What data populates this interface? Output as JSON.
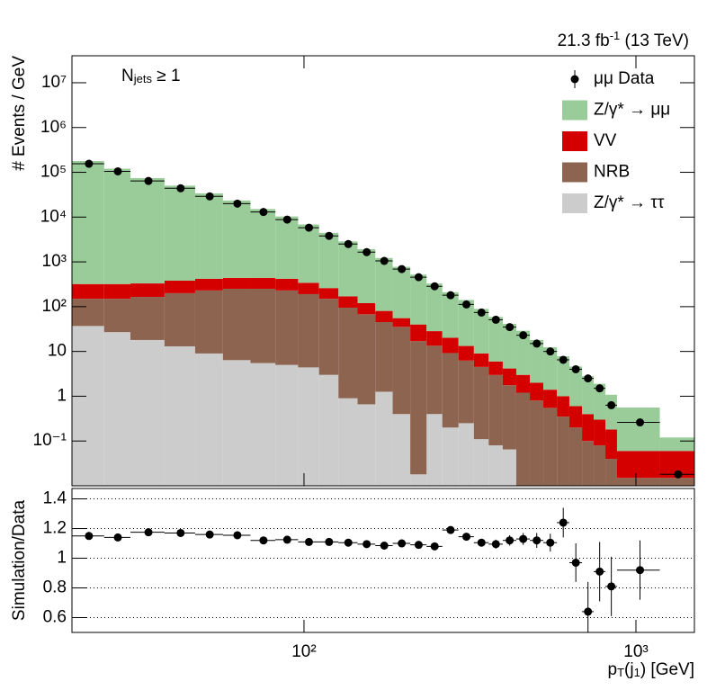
{
  "chart_data": [
    {
      "type": "stacked_histogram",
      "annotation": [
        {
          "text": "N"
        },
        {
          "text": "jets",
          "sub": true
        },
        {
          "text": " ≥ 1"
        }
      ],
      "lumi": [
        {
          "text": "21.3 fb"
        },
        {
          "text": "-1",
          "sup": true
        },
        {
          "text": " (13 TeV)"
        }
      ],
      "ylabel": "# Events / GeV",
      "xlog": true,
      "ylog": true,
      "legend": "top-right",
      "xlim": [
        20,
        1500
      ],
      "ylim": [
        0.01,
        40000000
      ],
      "yticks": [
        {
          "value": 0.1,
          "label": "10⁻¹"
        },
        1,
        10,
        {
          "value": 100,
          "label": "10²"
        },
        {
          "value": 1000,
          "label": "10³"
        },
        {
          "value": 10000,
          "label": "10⁴"
        },
        {
          "value": 100000,
          "label": "10⁵"
        },
        {
          "value": 1000000,
          "label": "10⁶"
        },
        {
          "value": 10000000,
          "label": "10⁷"
        }
      ],
      "bins": [
        20,
        25,
        30,
        38,
        47,
        57,
        69,
        82,
        96,
        111,
        127,
        145,
        164,
        185,
        209,
        234,
        261,
        292,
        325,
        360,
        397,
        436,
        479,
        526,
        578,
        630,
        688,
        746,
        809,
        877,
        1180,
        1500
      ],
      "series": [
        {
          "name": "Z/γ* → ττ",
          "color": "#cccccc",
          "values": [
            37,
            27,
            18,
            13,
            9,
            6.4,
            5.5,
            5,
            4.4,
            3,
            0.9,
            0.66,
            1.26,
            0.4,
            0.018,
            0.4,
            0.2,
            0.25,
            0.11,
            0.08,
            0.065,
            0,
            0,
            0,
            0,
            0,
            0,
            0,
            0,
            0,
            0
          ]
        },
        {
          "name": "NRB",
          "color": "#8c6450",
          "values": [
            113,
            123,
            147,
            187,
            221,
            244,
            245,
            225,
            186,
            147,
            94,
            67,
            44,
            35,
            17,
            13,
            9,
            6,
            4.4,
            2.9,
            1.7,
            1.2,
            0.8,
            0.55,
            0.35,
            0.2,
            0.1,
            0.08,
            0.04,
            0.015,
            0.015
          ]
        },
        {
          "name": "VV",
          "color": "#d40000",
          "values": [
            170,
            170,
            165,
            180,
            190,
            190,
            190,
            190,
            150,
            110,
            75,
            52,
            35,
            20,
            23,
            15,
            11,
            7,
            4.5,
            3,
            2.4,
            1.8,
            1.2,
            0.85,
            0.65,
            0.4,
            0.3,
            0.22,
            0.14,
            0.045,
            0.045
          ]
        },
        {
          "name": "Z/γ* → μμ",
          "color": "#99cc99",
          "values": [
            178000,
            120000,
            74000,
            50000,
            33500,
            23000,
            14700,
            9900,
            6500,
            4200,
            2700,
            1800,
            1140,
            720,
            480,
            300,
            190,
            128,
            80,
            53,
            37,
            26,
            16,
            11,
            6.8,
            4.0,
            2.4,
            1.6,
            0.9,
            0.5,
            0.06
          ]
        }
      ],
      "data": {
        "name": "μμ Data",
        "color": "#000000",
        "values": [
          155000,
          105000,
          64000,
          44000,
          29000,
          20000,
          13000,
          8800,
          5800,
          3800,
          2500,
          1650,
          1050,
          690,
          455,
          285,
          180,
          112,
          74,
          51,
          35,
          23,
          15,
          10,
          6.5,
          4.0,
          2.5,
          1.5,
          0.63,
          0.26,
          0.018
        ]
      }
    },
    {
      "type": "ratio",
      "ylabel": "Simulation/Data",
      "xlabel": [
        {
          "text": "p"
        },
        {
          "text": "T",
          "sub": true
        },
        {
          "text": "(j"
        },
        {
          "text": "1",
          "sub": true
        },
        {
          "text": ") [GeV]"
        }
      ],
      "xlog": true,
      "grid": true,
      "xlim": [
        20,
        1500
      ],
      "ylim": [
        0.5,
        1.47
      ],
      "xticks": [
        {
          "value": 100,
          "label": "10²"
        },
        {
          "value": 1000,
          "label": "10³"
        }
      ],
      "yticks": [
        0.6,
        0.8,
        1,
        1.2,
        1.4
      ],
      "values": [
        1.15,
        1.14,
        1.175,
        1.17,
        1.16,
        1.155,
        1.12,
        1.125,
        1.11,
        1.11,
        1.105,
        1.095,
        1.085,
        1.1,
        1.09,
        1.08,
        1.19,
        1.145,
        1.105,
        1.095,
        1.12,
        1.13,
        1.12,
        1.105,
        1.24,
        0.97,
        0.64,
        0.91,
        0.81,
        0.92,
        null
      ],
      "errors": [
        0.005,
        0.005,
        0.005,
        0.005,
        0.005,
        0.005,
        0.005,
        0.005,
        0.005,
        0.005,
        0.006,
        0.007,
        0.008,
        0.01,
        0.01,
        0.012,
        0.015,
        0.02,
        0.025,
        0.03,
        0.035,
        0.04,
        0.05,
        0.06,
        0.1,
        0.13,
        0.2,
        0.2,
        0.2,
        0.2,
        null
      ]
    }
  ]
}
